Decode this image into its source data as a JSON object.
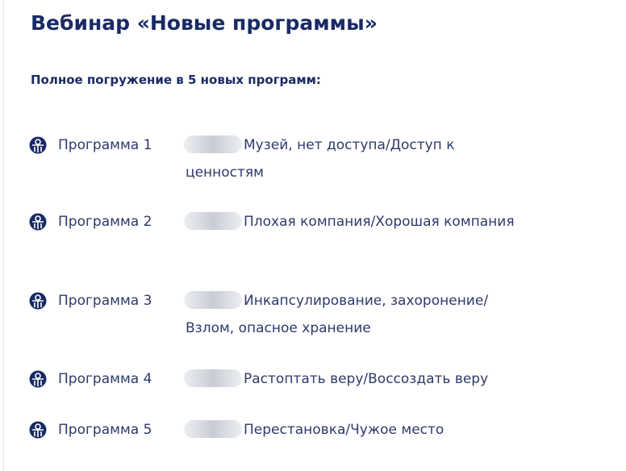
{
  "title": "Вебинар «Новые программы»",
  "subtitle": "Полное погружение в 5 новых программ:",
  "icon": "emblem-icon",
  "programs": [
    {
      "label": "Программа 1",
      "desc": "Музей, нет доступа/Доступ к ценностям"
    },
    {
      "label": "Программа 2",
      "desc": "Плохая компания/Хорошая компания"
    },
    {
      "label": "Программа 3",
      "desc": "Инкапсулирование, захоронение/Взлом, опасное хранение"
    },
    {
      "label": "Программа 4",
      "desc": "Растоптать веру/Воссоздать веру"
    },
    {
      "label": "Программа 5",
      "desc": "Перестановка/Чужое место"
    }
  ]
}
